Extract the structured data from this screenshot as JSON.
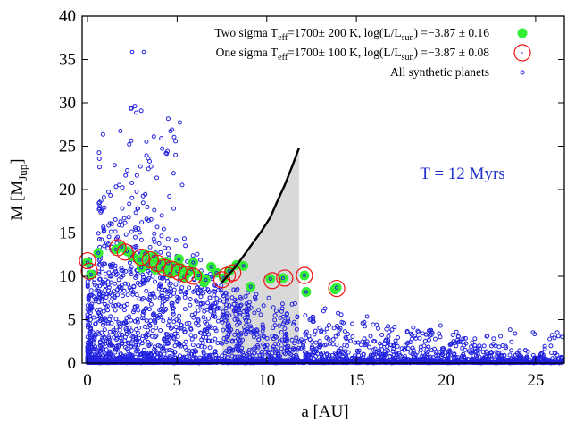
{
  "chart_data": {
    "type": "scatter",
    "title": "",
    "annotation": "T = 12 Myrs",
    "xlabel_main": "a [AU]",
    "ylabel_main": "M [M",
    "ylabel_sub": "Jup",
    "ylabel_close": "]",
    "xlim": [
      -0.3,
      26.6
    ],
    "ylim": [
      0,
      40
    ],
    "x_ticks": [
      0,
      5,
      10,
      15,
      20,
      25
    ],
    "y_ticks": [
      0,
      5,
      10,
      15,
      20,
      25,
      30,
      35,
      40
    ],
    "grid": false,
    "legend_position": "top-right",
    "colors": {
      "synthetic": "#2222e0",
      "two_sigma": "#33ee33",
      "one_sigma": "#ee1111",
      "detection_limit": "#000000",
      "shade": "#d9d9d9",
      "annotation": "#2233cc"
    },
    "legend": [
      {
        "series": "two_sigma",
        "parts": [
          "Two sigma T",
          "eff",
          "=1700± 200 K, log(L/L",
          "sun",
          ") =−3.87 ± 0.16"
        ]
      },
      {
        "series": "one_sigma",
        "parts": [
          "One sigma T",
          "eff",
          "=1700± 100 K, log(L/L",
          "sun",
          ") =−3.87 ± 0.08"
        ]
      },
      {
        "series": "synthetic",
        "parts": [
          "All synthetic planets"
        ]
      }
    ],
    "detection_limit": {
      "x": [
        7.5,
        8.3,
        9.0,
        9.7,
        10.2,
        10.6,
        11.0,
        11.4,
        11.8
      ],
      "y": [
        9.3,
        11.2,
        13.2,
        15.2,
        16.8,
        18.7,
        20.5,
        22.6,
        24.8
      ]
    },
    "shade_polygon": {
      "x": [
        7.5,
        8.3,
        9.0,
        9.7,
        10.2,
        10.6,
        11.0,
        11.4,
        11.8,
        11.8,
        7.5
      ],
      "y": [
        9.3,
        11.2,
        13.2,
        15.2,
        16.8,
        18.7,
        20.5,
        22.6,
        24.8,
        0,
        0
      ]
    },
    "series": [
      {
        "name": "Two sigma",
        "key": "two_sigma",
        "x": [
          0.0,
          0.2,
          0.6,
          1.6,
          1.9,
          2.2,
          2.5,
          2.9,
          3.2,
          3.4,
          3.6,
          3.8,
          4.0,
          4.2,
          4.4,
          4.6,
          4.8,
          5.0,
          5.2,
          5.4,
          5.6,
          5.9,
          6.2,
          6.5,
          6.9,
          7.2,
          7.6,
          7.9,
          8.3,
          8.7,
          9.1,
          10.2,
          10.9,
          12.1,
          12.2,
          13.8,
          13.9,
          3.0,
          3.7,
          4.5,
          5.1,
          5.8,
          6.6
        ],
        "y": [
          11.6,
          10.2,
          12.7,
          13.1,
          13.4,
          12.9,
          12.3,
          11.9,
          12.6,
          11.4,
          12.1,
          10.8,
          11.6,
          10.9,
          11.7,
          10.3,
          11.2,
          10.6,
          11.0,
          9.9,
          10.4,
          11.6,
          10.1,
          9.3,
          11.1,
          10.4,
          9.8,
          10.6,
          11.3,
          11.2,
          8.8,
          9.7,
          9.8,
          10.1,
          8.2,
          8.5,
          8.7,
          11.0,
          12.3,
          11.5,
          12.0,
          10.8,
          9.6
        ]
      },
      {
        "name": "One sigma",
        "key": "one_sigma",
        "x": [
          0.0,
          0.1,
          1.7,
          2.1,
          3.0,
          3.5,
          3.9,
          4.3,
          4.7,
          5.1,
          5.5,
          5.9,
          7.5,
          7.8,
          8.1,
          10.3,
          11.0,
          12.1,
          13.9
        ],
        "y": [
          11.8,
          10.6,
          13.3,
          12.8,
          12.2,
          11.9,
          11.5,
          11.0,
          10.8,
          10.5,
          10.2,
          10.0,
          9.6,
          10.1,
          10.4,
          9.5,
          9.8,
          10.1,
          8.6
        ]
      }
    ]
  }
}
